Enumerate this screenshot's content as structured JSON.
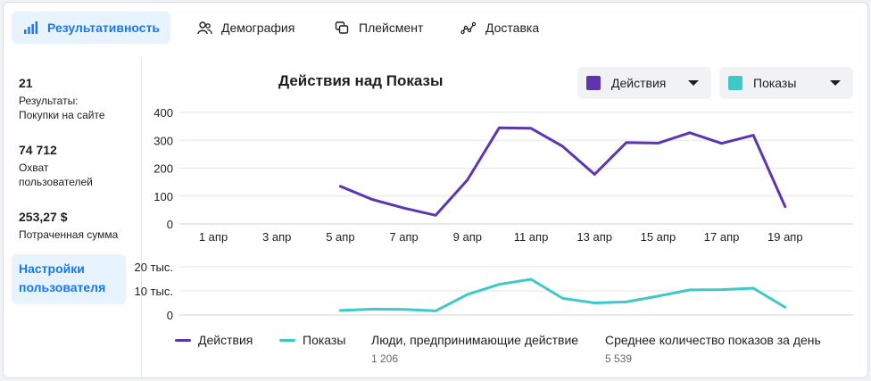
{
  "tabs": [
    {
      "label": "Результативность",
      "icon": "bar-chart-icon",
      "active": true
    },
    {
      "label": "Демография",
      "icon": "people-icon",
      "active": false
    },
    {
      "label": "Плейсмент",
      "icon": "placement-icon",
      "active": false
    },
    {
      "label": "Доставка",
      "icon": "delivery-icon",
      "active": false
    }
  ],
  "stats": [
    {
      "value": "21",
      "label_line1": "Результаты:",
      "label_line2": "Покупки на сайте"
    },
    {
      "value": "74 712",
      "label_line1": "Охват",
      "label_line2": "пользователей"
    },
    {
      "value": "253,27 $",
      "label_line1": "Потраченная сумма",
      "label_line2": ""
    }
  ],
  "settings_button": {
    "line1": "Настройки",
    "line2": "пользователя"
  },
  "selects": [
    {
      "label": "Действия",
      "color": "#5e35b1"
    },
    {
      "label": "Показы",
      "color": "#3ec9c6"
    }
  ],
  "legend": [
    {
      "label": "Действия",
      "color": "#5e35b1"
    },
    {
      "label": "Показы",
      "color": "#3ec9c6"
    }
  ],
  "summary": [
    {
      "title": "Люди, предпринимающие действие",
      "value": "1 206"
    },
    {
      "title": "Среднее количество показов за день",
      "value": "5 539"
    }
  ],
  "chart_data": [
    {
      "type": "line",
      "title": "Действия над Показы",
      "x": [
        "1 апр",
        "2 апр",
        "3 апр",
        "4 апр",
        "5 апр",
        "6 апр",
        "7 апр",
        "8 апр",
        "9 апр",
        "10 апр",
        "11 апр",
        "12 апр",
        "13 апр",
        "14 апр",
        "15 апр",
        "16 апр",
        "17 апр",
        "18 апр",
        "19 апр"
      ],
      "x_tick_labels": [
        "1 апр",
        "3 апр",
        "5 апр",
        "7 апр",
        "9 апр",
        "11 апр",
        "13 апр",
        "15 апр",
        "17 апр",
        "19 апр"
      ],
      "ylim": [
        0,
        400
      ],
      "y_ticks": [
        "0",
        "100",
        "200",
        "300",
        "400"
      ],
      "grid": true,
      "series": [
        {
          "name": "Действия",
          "color": "#5e35b1",
          "values": [
            null,
            null,
            null,
            null,
            135,
            88,
            57,
            31,
            158,
            345,
            343,
            278,
            178,
            292,
            290,
            327,
            289,
            318,
            62
          ]
        }
      ]
    },
    {
      "type": "line",
      "ylim": [
        0,
        20000
      ],
      "y_ticks": [
        "0",
        "10 тыс.",
        "20 тыс."
      ],
      "grid": true,
      "series": [
        {
          "name": "Показы",
          "color": "#3ec9c6",
          "values": [
            null,
            null,
            null,
            null,
            1900,
            2400,
            2300,
            1700,
            8500,
            12700,
            14800,
            6900,
            5000,
            5400,
            7800,
            10400,
            10500,
            11100,
            3200
          ]
        }
      ]
    }
  ]
}
